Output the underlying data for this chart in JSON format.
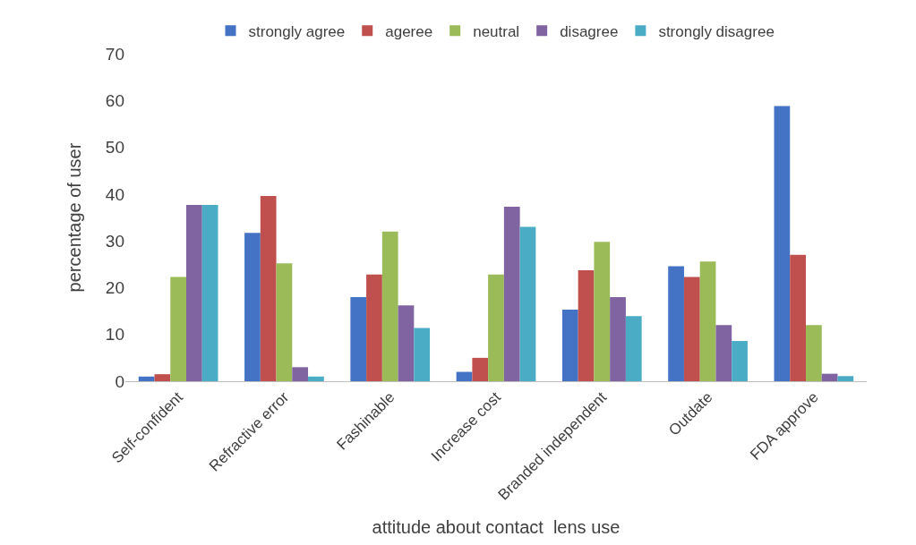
{
  "chart_data": {
    "type": "bar",
    "xlabel": "attitude about contact  lens use",
    "ylabel": "percentage of user",
    "categories": [
      "Self-confident",
      "Refractive error",
      "Fashinable",
      "Increase cost",
      "Branded independent",
      "Outdate",
      "FDA approve"
    ],
    "series": [
      {
        "name": "strongly agree",
        "color": "#4472c4",
        "values": [
          1,
          31.7,
          18,
          2,
          15.3,
          24.6,
          58.8
        ]
      },
      {
        "name": "ageree",
        "color": "#c0504d",
        "values": [
          1.5,
          39.6,
          22.8,
          5,
          23.7,
          22.3,
          27
        ]
      },
      {
        "name": "neutral",
        "color": "#9bbb59",
        "values": [
          22.3,
          25.2,
          32,
          22.8,
          29.8,
          25.6,
          12
        ]
      },
      {
        "name": "disagree",
        "color": "#8064a2",
        "values": [
          37.7,
          3,
          16.2,
          37.3,
          18,
          12,
          1.6
        ]
      },
      {
        "name": "strongly disagree",
        "color": "#4bacc6",
        "values": [
          37.7,
          1,
          11.4,
          33,
          13.9,
          8.6,
          1.1
        ]
      }
    ],
    "ylim": [
      0,
      70
    ],
    "yticks": [
      0,
      10,
      20,
      30,
      40,
      50,
      60,
      70
    ],
    "grid": false,
    "legend": "top"
  }
}
